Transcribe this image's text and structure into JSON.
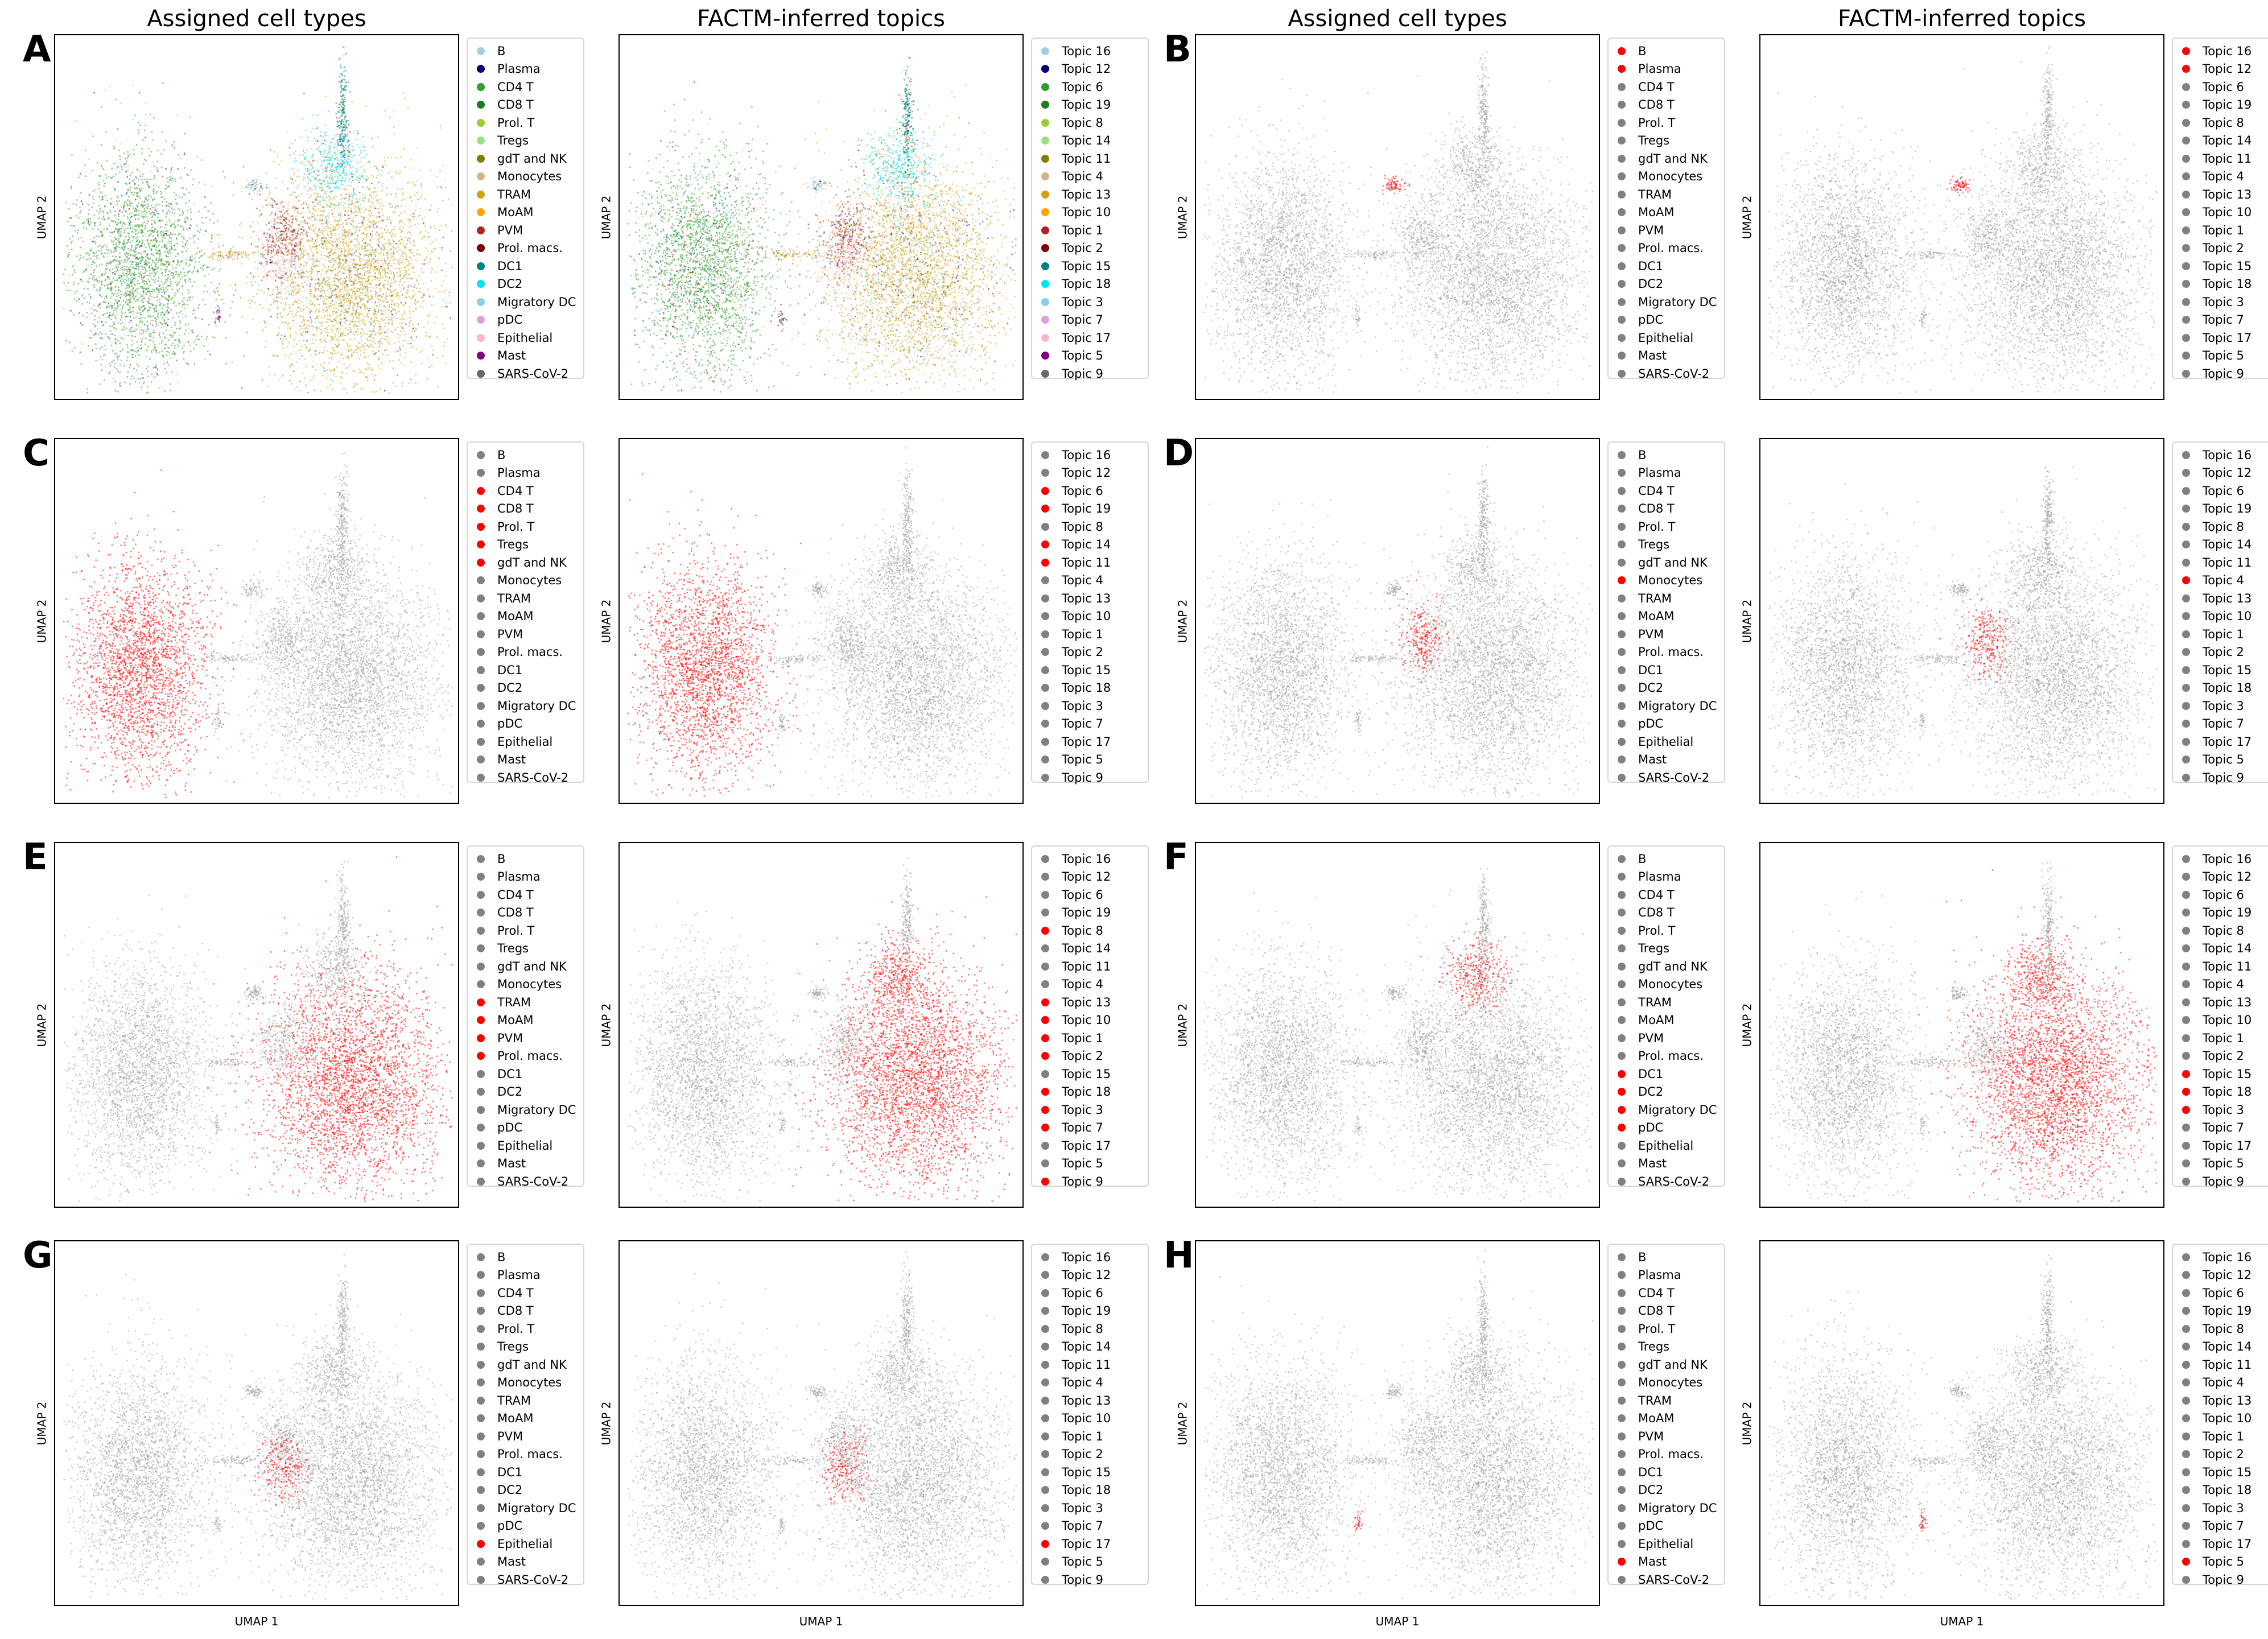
{
  "column_titles": [
    "Assigned cell types",
    "FACTM-inferred topics",
    "Assigned cell types",
    "FACTM-inferred topics"
  ],
  "axis_labels": {
    "x": "UMAP 1",
    "y": "UMAP 2"
  },
  "colors": {
    "highlight": "#ff0000",
    "background": "#808080",
    "cloud_gray": "#a6a6a6"
  },
  "cell_types": [
    "B",
    "Plasma",
    "CD4 T",
    "CD8 T",
    "Prol. T",
    "Tregs",
    "gdT and NK",
    "Monocytes",
    "TRAM",
    "MoAM",
    "PVM",
    "Prol. macs.",
    "DC1",
    "DC2",
    "Migratory DC",
    "pDC",
    "Epithelial",
    "Mast",
    "SARS-CoV-2"
  ],
  "topics": [
    "Topic 16",
    "Topic 12",
    "Topic 6",
    "Topic 19",
    "Topic 8",
    "Topic 14",
    "Topic 11",
    "Topic 4",
    "Topic 13",
    "Topic 10",
    "Topic 1",
    "Topic 2",
    "Topic 15",
    "Topic 18",
    "Topic 3",
    "Topic 7",
    "Topic 17",
    "Topic 5",
    "Topic 9"
  ],
  "palette": [
    "#a6cee3",
    "#000080",
    "#2ca02c",
    "#1f7a1f",
    "#9acd32",
    "#98df8a",
    "#808000",
    "#d2b48c",
    "#d4a017",
    "#ffa500",
    "#b22222",
    "#800000",
    "#008080",
    "#00e5ee",
    "#87ceeb",
    "#dda0dd",
    "#ffb6c1",
    "#800080",
    "#696969"
  ],
  "chart_data": [
    {
      "panel": "A",
      "type": "scatter",
      "title": "Assigned cell types",
      "xlabel": "",
      "ylabel": "UMAP 2",
      "legend": "cell_types",
      "mode": "colored",
      "highlight": []
    },
    {
      "panel": "A",
      "type": "scatter",
      "title": "FACTM-inferred topics",
      "xlabel": "",
      "ylabel": "UMAP 2",
      "legend": "topics",
      "mode": "colored",
      "highlight": []
    },
    {
      "panel": "B",
      "type": "scatter",
      "title": "Assigned cell types",
      "xlabel": "",
      "ylabel": "UMAP 2",
      "legend": "cell_types",
      "mode": "highlight",
      "highlight": [
        "B",
        "Plasma"
      ]
    },
    {
      "panel": "B",
      "type": "scatter",
      "title": "FACTM-inferred topics",
      "xlabel": "",
      "ylabel": "UMAP 2",
      "legend": "topics",
      "mode": "highlight",
      "highlight": [
        "Topic 16",
        "Topic 12"
      ]
    },
    {
      "panel": "C",
      "type": "scatter",
      "xlabel": "",
      "ylabel": "UMAP 2",
      "legend": "cell_types",
      "mode": "highlight",
      "highlight": [
        "CD4 T",
        "CD8 T",
        "Prol. T",
        "Tregs",
        "gdT and NK"
      ]
    },
    {
      "panel": "C",
      "type": "scatter",
      "xlabel": "",
      "ylabel": "UMAP 2",
      "legend": "topics",
      "mode": "highlight",
      "highlight": [
        "Topic 6",
        "Topic 19",
        "Topic 14",
        "Topic 11"
      ]
    },
    {
      "panel": "D",
      "type": "scatter",
      "xlabel": "",
      "ylabel": "UMAP 2",
      "legend": "cell_types",
      "mode": "highlight",
      "highlight": [
        "Monocytes"
      ]
    },
    {
      "panel": "D",
      "type": "scatter",
      "xlabel": "",
      "ylabel": "UMAP 2",
      "legend": "topics",
      "mode": "highlight",
      "highlight": [
        "Topic 4"
      ]
    },
    {
      "panel": "E",
      "type": "scatter",
      "xlabel": "",
      "ylabel": "UMAP 2",
      "legend": "cell_types",
      "mode": "highlight",
      "highlight": [
        "TRAM",
        "MoAM",
        "PVM",
        "Prol. macs."
      ]
    },
    {
      "panel": "E",
      "type": "scatter",
      "xlabel": "",
      "ylabel": "UMAP 2",
      "legend": "topics",
      "mode": "highlight",
      "highlight": [
        "Topic 8",
        "Topic 13",
        "Topic 10",
        "Topic 1",
        "Topic 2",
        "Topic 18",
        "Topic 3",
        "Topic 7",
        "Topic 9"
      ]
    },
    {
      "panel": "F",
      "type": "scatter",
      "xlabel": "",
      "ylabel": "UMAP 2",
      "legend": "cell_types",
      "mode": "highlight",
      "highlight": [
        "DC1",
        "DC2",
        "Migratory DC",
        "pDC"
      ]
    },
    {
      "panel": "F",
      "type": "scatter",
      "xlabel": "",
      "ylabel": "UMAP 2",
      "legend": "topics",
      "mode": "highlight",
      "highlight": [
        "Topic 15",
        "Topic 18",
        "Topic 3"
      ]
    },
    {
      "panel": "G",
      "type": "scatter",
      "xlabel": "UMAP 1",
      "ylabel": "UMAP 2",
      "legend": "cell_types",
      "mode": "highlight",
      "highlight": [
        "Epithelial"
      ]
    },
    {
      "panel": "G",
      "type": "scatter",
      "xlabel": "UMAP 1",
      "ylabel": "UMAP 2",
      "legend": "topics",
      "mode": "highlight",
      "highlight": [
        "Topic 17"
      ]
    },
    {
      "panel": "H",
      "type": "scatter",
      "xlabel": "UMAP 1",
      "ylabel": "UMAP 2",
      "legend": "cell_types",
      "mode": "highlight",
      "highlight": [
        "Mast"
      ]
    },
    {
      "panel": "H",
      "type": "scatter",
      "xlabel": "UMAP 1",
      "ylabel": "UMAP 2",
      "legend": "topics",
      "mode": "highlight",
      "highlight": [
        "Topic 5"
      ]
    }
  ]
}
